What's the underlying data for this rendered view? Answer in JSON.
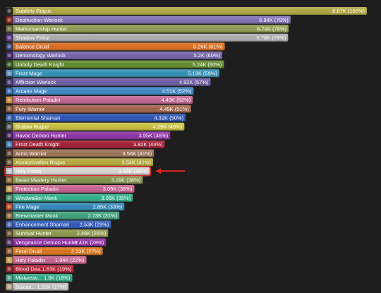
{
  "chart_data": {
    "type": "bar",
    "orientation": "horizontal",
    "xlim": [
      0,
      8.67
    ],
    "unit": "K",
    "categories": [
      "Subtlety Rogue",
      "Destruction Warlock",
      "Marksmanship Hunter",
      "Shadow Priest",
      "Balance Druid",
      "Demonology Warlock",
      "Unholy Death Knight",
      "Frost Mage",
      "Affliction Warlock",
      "Arcane Mage",
      "Retribution Paladin",
      "Fury Warrior",
      "Elemental Shaman",
      "Outlaw Rogue",
      "Havoc Demon Hunter",
      "Frost Death Knight",
      "Arms Warrior",
      "Assassination Rogue",
      "Holy Priest",
      "Beast Mastery Hunter",
      "Protection Paladin",
      "Windwalker Monk",
      "Fire Mage",
      "Brewmaster Monk",
      "Enhancement Shaman",
      "Survival Hunter",
      "Vengeance Demon Hunter",
      "Feral Druid",
      "Holy Paladin",
      "Blood Dea...",
      "Mistweav...",
      "Discipl..."
    ],
    "values": [
      8.67,
      6.84,
      6.79,
      6.78,
      5.26,
      5.2,
      5.24,
      5.13,
      4.92,
      4.51,
      4.49,
      4.45,
      4.32,
      4.29,
      3.95,
      3.82,
      3.56,
      3.54,
      3.46,
      3.29,
      3.09,
      3.05,
      2.85,
      2.73,
      2.53,
      2.46,
      2.41,
      2.33,
      1.94,
      1.63,
      1.6,
      1.51
    ],
    "value_labels": [
      "8.67K (100%)",
      "6.84K (79%)",
      "6.79K (78%)",
      "6.78K (78%)",
      "5.26K (61%)",
      "5.2K (60%)",
      "5.24K (60%)",
      "5.13K (59%)",
      "4.92K (57%)",
      "4.51K (52%)",
      "4.49K (52%)",
      "4.45K (51%)",
      "4.32K (50%)",
      "4.29K (49%)",
      "3.95K (46%)",
      "3.82K (44%)",
      "3.56K (41%)",
      "3.54K (41%)",
      "3.46K (40%)",
      "3.29K (38%)",
      "3.09K (36%)",
      "3.05K (35%)",
      "2.85K (33%)",
      "2.73K (31%)",
      "2.53K (29%)",
      "2.46K (28%)",
      "2.41K (28%)",
      "2.33K (27%)",
      "1.94K (22%)",
      "1.63K (19%)",
      "1.6K (18%)",
      "1.51K (17%)"
    ],
    "colors": [
      "#ada63f",
      "#7f6fb5",
      "#8f9b4e",
      "#a9a9a9",
      "#d96b1c",
      "#7263a8",
      "#5e8a2a",
      "#2f8fb3",
      "#6c5aa0",
      "#3a85c3",
      "#c0628f",
      "#a1624a",
      "#2a52b5",
      "#c8bd3a",
      "#8b2fa3",
      "#a11a30",
      "#9a7052",
      "#b2a737",
      "#d4d4d4",
      "#82904a",
      "#c25f8d",
      "#2fae86",
      "#2f86b8",
      "#3b9e7a",
      "#2a55b8",
      "#8a9648",
      "#8d2ba1",
      "#d77318",
      "#c75f8e",
      "#b31a32",
      "#2aa37d",
      "#bcbcbc"
    ],
    "icon_colors": [
      "#2a2a2a",
      "#8a2c1e",
      "#6b6b3a",
      "#5a3a8a",
      "#3a4a7a",
      "#4a2a6a",
      "#3a5a2a",
      "#5a8ac0",
      "#4a3a7a",
      "#3a6ab0",
      "#c08a3a",
      "#8a5a3a",
      "#3a6ab0",
      "#5a5a5a",
      "#4a2a6a",
      "#4a7ab0",
      "#6a4a3a",
      "#6a5a3a",
      "#c0c0d0",
      "#8a6a3a",
      "#c0a050",
      "#4a8a6a",
      "#c04a2a",
      "#8a6a4a",
      "#4a6ab0",
      "#6a5a3a",
      "#5a3a6a",
      "#8a5a3a",
      "#c0a050",
      "#8a2a2a",
      "#4aa08a",
      "#b0a080"
    ],
    "highlight_index": 18,
    "highlight_color": "#e0261f",
    "annotation": "red-arrow pointing at Holy Priest"
  }
}
